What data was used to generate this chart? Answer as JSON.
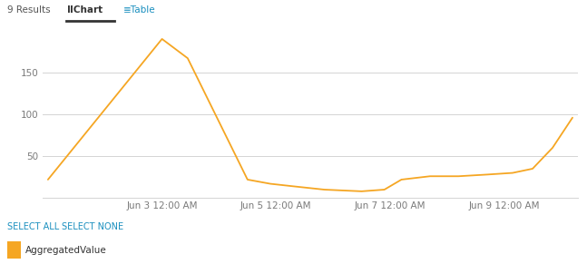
{
  "line_color": "#f5a623",
  "background_color": "#ffffff",
  "grid_color": "#d4d4d4",
  "x_tick_labels": [
    "Jun 3 12:00 AM",
    "Jun 5 12:00 AM",
    "Jun 7 12:00 AM",
    "Jun 9 12:00 AM"
  ],
  "x_tick_positions": [
    2.0,
    4.0,
    6.0,
    8.0
  ],
  "y_tick_labels": [
    "50",
    "100",
    "150"
  ],
  "y_tick_positions": [
    50,
    100,
    150
  ],
  "ylim": [
    0,
    205
  ],
  "xlim": [
    -0.1,
    9.3
  ],
  "data_x": [
    0.0,
    2.0,
    2.45,
    3.5,
    3.9,
    4.3,
    4.85,
    5.5,
    5.9,
    6.2,
    6.7,
    7.2,
    7.7,
    8.15,
    8.5,
    8.85,
    9.2
  ],
  "data_y": [
    22,
    190,
    167,
    22,
    17,
    14,
    10,
    8,
    10,
    22,
    26,
    26,
    28,
    30,
    35,
    60,
    96
  ],
  "legend_label": "AggregatedValue",
  "legend_color": "#f5a623",
  "select_all_text": "SELECT ALL",
  "select_none_text": "SELECT NONE",
  "select_text_color": "#1a8fbf",
  "results_text": "9 Results",
  "tab_chart_text": "Chart",
  "tab_table_text": "Table",
  "tab_icon_chart": "ll",
  "header_sep_color": "#cccccc",
  "tick_label_color": "#7a7a7a",
  "results_color": "#555555",
  "chart_tab_color": "#333333",
  "table_tab_color": "#1a8fbf"
}
